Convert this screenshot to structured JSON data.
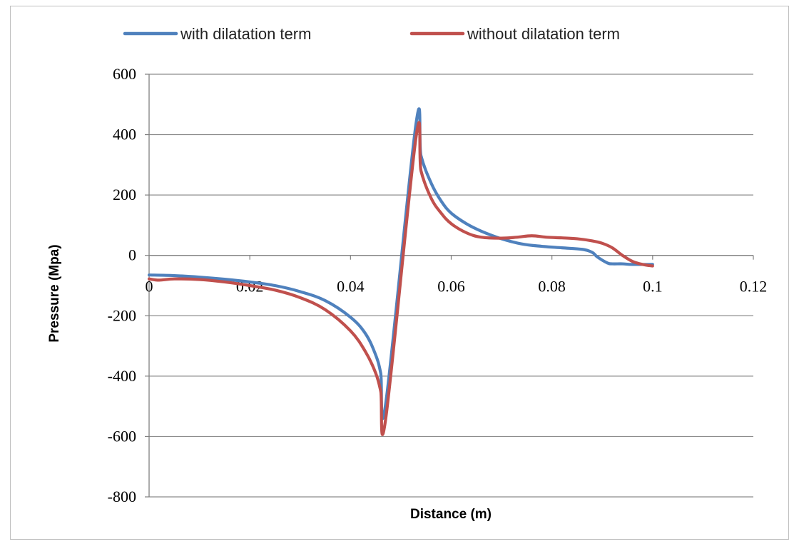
{
  "chart_data": {
    "type": "line",
    "title": "",
    "xlabel": "Distance (m)",
    "ylabel": "Pressure (Mpa)",
    "xlim": [
      0,
      0.12
    ],
    "ylim": [
      -800,
      600
    ],
    "x_ticks": [
      0,
      0.02,
      0.04,
      0.06,
      0.08,
      0.1,
      0.12
    ],
    "x_tick_labels": [
      "0",
      "0.02",
      "0.04",
      "0.06",
      "0.08",
      "0.1",
      "0.12"
    ],
    "y_ticks": [
      600,
      400,
      200,
      0,
      -200,
      -400,
      -600,
      -800
    ],
    "y_tick_labels": [
      "600",
      "400",
      "200",
      "0",
      "-200",
      "-400",
      "-600",
      "-800"
    ],
    "grid": "horizontal",
    "legend_position": "top",
    "series": [
      {
        "name": "with dilatation term",
        "color": "#4f81bd",
        "x": [
          0,
          0.005,
          0.01,
          0.015,
          0.02,
          0.025,
          0.03,
          0.035,
          0.04,
          0.043,
          0.045,
          0.046,
          0.047,
          0.053,
          0.054,
          0.056,
          0.058,
          0.06,
          0.063,
          0.066,
          0.07,
          0.074,
          0.078,
          0.082,
          0.086,
          0.088,
          0.089,
          0.091,
          0.092,
          0.094,
          0.096,
          0.1
        ],
        "y": [
          -65,
          -67,
          -72,
          -79,
          -88,
          -100,
          -120,
          -150,
          -205,
          -260,
          -330,
          -390,
          -490,
          435,
          330,
          240,
          180,
          140,
          105,
          80,
          55,
          38,
          30,
          25,
          20,
          10,
          -5,
          -25,
          -28,
          -28,
          -30,
          -30
        ]
      },
      {
        "name": "without dilatation term",
        "color": "#c0504d",
        "x": [
          0,
          0.002,
          0.005,
          0.01,
          0.015,
          0.02,
          0.025,
          0.03,
          0.035,
          0.04,
          0.043,
          0.045,
          0.046,
          0.047,
          0.053,
          0.054,
          0.056,
          0.058,
          0.06,
          0.063,
          0.066,
          0.07,
          0.073,
          0.076,
          0.079,
          0.082,
          0.085,
          0.088,
          0.09,
          0.092,
          0.094,
          0.096,
          0.098,
          0.1
        ],
        "y": [
          -78,
          -82,
          -78,
          -80,
          -88,
          -100,
          -115,
          -140,
          -180,
          -250,
          -320,
          -390,
          -450,
          -540,
          390,
          280,
          190,
          140,
          105,
          75,
          60,
          57,
          60,
          65,
          60,
          58,
          55,
          48,
          40,
          25,
          0,
          -20,
          -30,
          -35
        ]
      }
    ]
  }
}
